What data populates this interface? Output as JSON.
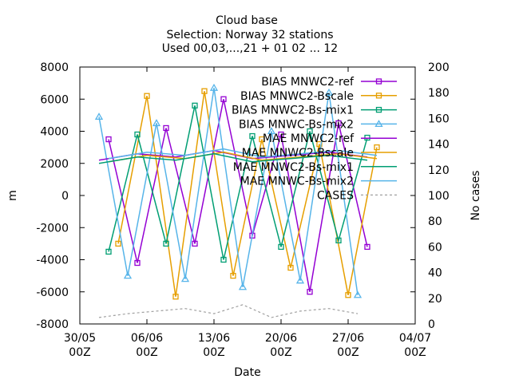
{
  "chart_data": {
    "type": "line",
    "title": [
      "Cloud base",
      "Selection: Norway     32 stations",
      "Used 00,03,...,21 + 01 02 ... 12"
    ],
    "xlabel": "Date",
    "ylabel": "m",
    "y2label": "No cases",
    "xlim": [
      "2023-05-30T00:00",
      "2023-07-04T00:00"
    ],
    "ylim": [
      -8000,
      8000
    ],
    "y2lim": [
      0,
      200
    ],
    "grid": false,
    "legend_position": "top-right",
    "x_ticks": [
      {
        "date": "2023-05-30T00:00",
        "l1": "30/05",
        "l2": "00Z"
      },
      {
        "date": "2023-06-06T00:00",
        "l1": "06/06",
        "l2": "00Z"
      },
      {
        "date": "2023-06-13T00:00",
        "l1": "13/06",
        "l2": "00Z"
      },
      {
        "date": "2023-06-20T00:00",
        "l1": "20/06",
        "l2": "00Z"
      },
      {
        "date": "2023-06-27T00:00",
        "l1": "27/06",
        "l2": "00Z"
      },
      {
        "date": "2023-07-04T00:00",
        "l1": "04/07",
        "l2": "00Z"
      }
    ],
    "y_ticks": [
      -8000,
      -6000,
      -4000,
      -2000,
      0,
      2000,
      4000,
      6000,
      8000
    ],
    "y2_ticks": [
      0,
      20,
      40,
      60,
      80,
      100,
      120,
      140,
      160,
      180,
      200
    ],
    "series": [
      {
        "name": "BIAS MNWC2-ref",
        "color": "#9400d3",
        "marker": "square",
        "axis": "y",
        "x": [
          "2023-06-02",
          "2023-06-05",
          "2023-06-08",
          "2023-06-11",
          "2023-06-14",
          "2023-06-17",
          "2023-06-20",
          "2023-06-23",
          "2023-06-26",
          "2023-06-29"
        ],
        "values": [
          3500,
          -4200,
          4200,
          -3000,
          6000,
          -2500,
          3800,
          -6000,
          4500,
          -3200
        ]
      },
      {
        "name": "BIAS MNWC2-Bscale",
        "color": "#e69f00",
        "marker": "square",
        "axis": "y",
        "x": [
          "2023-06-03",
          "2023-06-06",
          "2023-06-09",
          "2023-06-12",
          "2023-06-15",
          "2023-06-18",
          "2023-06-21",
          "2023-06-24",
          "2023-06-27",
          "2023-06-30"
        ],
        "values": [
          -3000,
          6200,
          -6300,
          6500,
          -5000,
          3500,
          -4500,
          3200,
          -6200,
          3000
        ]
      },
      {
        "name": "BIAS MNWC2-Bs-mix1",
        "color": "#009e73",
        "marker": "square",
        "axis": "y",
        "x": [
          "2023-06-02",
          "2023-06-05",
          "2023-06-08",
          "2023-06-11",
          "2023-06-14",
          "2023-06-17",
          "2023-06-20",
          "2023-06-23",
          "2023-06-26",
          "2023-06-29"
        ],
        "values": [
          -3500,
          3800,
          -3000,
          5600,
          -4000,
          3700,
          -3200,
          4000,
          -2800,
          3600
        ]
      },
      {
        "name": "BIAS MNWC-Bs-mix2",
        "color": "#56b4e9",
        "marker": "triangle",
        "axis": "y",
        "x": [
          "2023-06-01",
          "2023-06-04",
          "2023-06-07",
          "2023-06-10",
          "2023-06-13",
          "2023-06-16",
          "2023-06-19",
          "2023-06-22",
          "2023-06-25",
          "2023-06-28"
        ],
        "values": [
          4900,
          -5000,
          4500,
          -5200,
          6700,
          -5700,
          4000,
          -5300,
          6400,
          -6200
        ]
      },
      {
        "name": "MAE MNWC2-ref",
        "color": "#9400d3",
        "marker": "none",
        "axis": "y",
        "x": [
          "2023-06-01",
          "2023-06-05",
          "2023-06-09",
          "2023-06-13",
          "2023-06-17",
          "2023-06-21",
          "2023-06-25",
          "2023-06-29"
        ],
        "values": [
          2200,
          2600,
          2400,
          2800,
          2300,
          2500,
          2700,
          2400
        ]
      },
      {
        "name": "MAE MNWC2-Bscale",
        "color": "#e69f00",
        "marker": "none",
        "axis": "y",
        "x": [
          "2023-06-02",
          "2023-06-06",
          "2023-06-10",
          "2023-06-14",
          "2023-06-18",
          "2023-06-22",
          "2023-06-26",
          "2023-06-30"
        ],
        "values": [
          2100,
          2500,
          2300,
          2700,
          2200,
          2400,
          2600,
          2300
        ]
      },
      {
        "name": "MAE MNWC2-Bs-mix1",
        "color": "#009e73",
        "marker": "none",
        "axis": "y",
        "x": [
          "2023-06-01",
          "2023-06-05",
          "2023-06-09",
          "2023-06-13",
          "2023-06-17",
          "2023-06-21",
          "2023-06-25",
          "2023-06-29"
        ],
        "values": [
          2000,
          2400,
          2200,
          2600,
          2100,
          2300,
          2500,
          2200
        ]
      },
      {
        "name": "MAE MNWC-Bs-mix2",
        "color": "#56b4e9",
        "marker": "none",
        "axis": "y",
        "x": [
          "2023-06-02",
          "2023-06-06",
          "2023-06-10",
          "2023-06-14",
          "2023-06-18",
          "2023-06-22",
          "2023-06-26",
          "2023-06-30"
        ],
        "values": [
          2300,
          2700,
          2500,
          2900,
          2400,
          2600,
          2800,
          2500
        ]
      },
      {
        "name": "CASES",
        "color": "#a0a0a0",
        "marker": "none",
        "dashed": true,
        "axis": "y2",
        "x": [
          "2023-06-01",
          "2023-06-04",
          "2023-06-07",
          "2023-06-10",
          "2023-06-13",
          "2023-06-16",
          "2023-06-19",
          "2023-06-22",
          "2023-06-25",
          "2023-06-28"
        ],
        "values": [
          5,
          8,
          10,
          12,
          8,
          15,
          5,
          10,
          12,
          8
        ]
      }
    ]
  }
}
